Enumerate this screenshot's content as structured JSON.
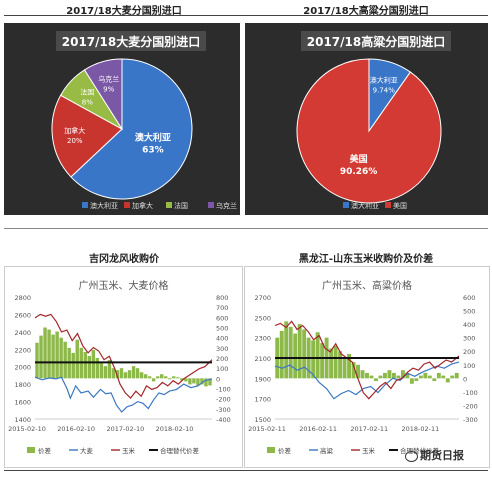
{
  "titles": {
    "top_left": "2017/18大麦分国别进口",
    "top_right": "2017/18大高粱分国别进口",
    "bottom_left": "吉冈龙风收购价",
    "bottom_right": "黑龙江-山东玉米收购价及价差"
  },
  "watermark": "期货日报",
  "chart_data": [
    {
      "type": "pie",
      "title": "2017/18大麦分国别进口",
      "slices": [
        {
          "label": "澳大利亚",
          "pct_label": "63%",
          "value": 63,
          "color": "#3a76c8"
        },
        {
          "label": "加拿大",
          "pct_label": "20%",
          "value": 20,
          "color": "#c8352f"
        },
        {
          "label": "法国",
          "pct_label": "8%",
          "value": 8,
          "color": "#97bb44"
        },
        {
          "label": "乌克兰",
          "pct_label": "9%",
          "value": 9,
          "color": "#7b58a6"
        }
      ],
      "legend": [
        "澳大利亚",
        "加拿大",
        "法国",
        "乌克兰"
      ]
    },
    {
      "type": "pie",
      "title": "2017/18高粱分国别进口",
      "slices": [
        {
          "label": "澳大利亚",
          "pct_label": "9.74%",
          "value": 9.74,
          "color": "#3a76c8"
        },
        {
          "label": "美国",
          "pct_label": "90.26%",
          "value": 90.26,
          "color": "#d43a34"
        }
      ],
      "legend": [
        "澳大利亚",
        "美国"
      ]
    },
    {
      "type": "line",
      "title": "广州玉米、大麦价格",
      "x_ticks": [
        "2015-02-10",
        "2016-02-10",
        "2017-02-10",
        "2018-02-10"
      ],
      "y_left": {
        "min": 1400,
        "max": 2800,
        "ticks": [
          1400,
          1600,
          1800,
          2000,
          2200,
          2400,
          2600,
          2800
        ]
      },
      "y_right": {
        "min": -400,
        "max": 800,
        "ticks": [
          -400,
          -300,
          -200,
          -100,
          0,
          100,
          200,
          300,
          400,
          500,
          600,
          700,
          800
        ]
      },
      "reference": 2050,
      "legend": [
        "价差",
        "大麦",
        "玉米",
        "合理替代价差"
      ],
      "series": [
        {
          "name": "价差",
          "kind": "bar",
          "axis": "right",
          "color": "#8db84a",
          "values": [
            350,
            420,
            500,
            480,
            430,
            460,
            400,
            360,
            300,
            250,
            380,
            300,
            260,
            220,
            280,
            200,
            150,
            120,
            180,
            100,
            80,
            100,
            60,
            80,
            120,
            100,
            60,
            40,
            20,
            -30,
            20,
            40,
            20,
            -10,
            20,
            10,
            -20,
            -30,
            -60,
            -50,
            -70,
            -60,
            -80,
            -70
          ]
        },
        {
          "name": "大麦",
          "kind": "line",
          "axis": "left",
          "color": "#3b78c3",
          "x": [
            0,
            0.04,
            0.08,
            0.12,
            0.15,
            0.18,
            0.2,
            0.23,
            0.26,
            0.3,
            0.33,
            0.37,
            0.4,
            0.43,
            0.46,
            0.49,
            0.52,
            0.55,
            0.58,
            0.61,
            0.64,
            0.67,
            0.7,
            0.73,
            0.76,
            0.8,
            0.84,
            0.88,
            0.92,
            0.96,
            1.0
          ],
          "values": [
            1880,
            1850,
            1870,
            1860,
            1880,
            1750,
            1640,
            1780,
            1700,
            1720,
            1650,
            1740,
            1690,
            1700,
            1560,
            1480,
            1540,
            1560,
            1600,
            1580,
            1520,
            1620,
            1700,
            1680,
            1720,
            1740,
            1800,
            1760,
            1780,
            1840,
            1860
          ]
        },
        {
          "name": "玉米",
          "kind": "line",
          "axis": "left",
          "color": "#a3262a",
          "x": [
            0,
            0.03,
            0.06,
            0.09,
            0.12,
            0.15,
            0.18,
            0.21,
            0.24,
            0.27,
            0.3,
            0.33,
            0.36,
            0.39,
            0.42,
            0.45,
            0.48,
            0.51,
            0.54,
            0.57,
            0.6,
            0.63,
            0.66,
            0.69,
            0.72,
            0.75,
            0.78,
            0.81,
            0.84,
            0.87,
            0.9,
            0.93,
            0.96,
            1.0
          ],
          "values": [
            2560,
            2600,
            2580,
            2600,
            2520,
            2400,
            2420,
            2300,
            2380,
            2240,
            2160,
            2220,
            2180,
            2080,
            2120,
            1980,
            1800,
            1700,
            1640,
            1720,
            1660,
            1780,
            1740,
            1760,
            1820,
            1780,
            1840,
            1800,
            1860,
            1900,
            1940,
            1980,
            2000,
            2080
          ]
        }
      ]
    },
    {
      "type": "line",
      "title": "广州玉米、高粱价格",
      "x_ticks": [
        "2015-02-11",
        "2016-02-11",
        "2017-02-11",
        "2018-02-11"
      ],
      "y_left": {
        "min": 1500,
        "max": 2700,
        "ticks": [
          1500,
          1700,
          1900,
          2100,
          2300,
          2500,
          2700
        ]
      },
      "y_right": {
        "min": -300,
        "max": 600,
        "ticks": [
          -300,
          -200,
          -100,
          0,
          100,
          200,
          300,
          400,
          500,
          600
        ]
      },
      "reference": 2100,
      "legend": [
        "价差",
        "高粱",
        "玉米",
        "合理替代价差"
      ],
      "series": [
        {
          "name": "价差",
          "kind": "bar",
          "axis": "right",
          "color": "#8db84a",
          "values": [
            300,
            350,
            420,
            380,
            330,
            400,
            360,
            300,
            280,
            340,
            260,
            300,
            220,
            240,
            200,
            150,
            180,
            120,
            100,
            60,
            40,
            20,
            -20,
            20,
            40,
            60,
            40,
            20,
            60,
            40,
            -40,
            -20,
            20,
            40,
            20,
            -20,
            40,
            20,
            -30,
            20,
            40
          ]
        },
        {
          "name": "高粱",
          "kind": "line",
          "axis": "left",
          "color": "#3b78c3",
          "x": [
            0,
            0.04,
            0.08,
            0.12,
            0.16,
            0.2,
            0.24,
            0.28,
            0.32,
            0.36,
            0.4,
            0.44,
            0.48,
            0.52,
            0.56,
            0.6,
            0.64,
            0.68,
            0.72,
            0.76,
            0.8,
            0.84,
            0.88,
            0.92,
            0.96,
            1.0
          ],
          "values": [
            2020,
            2000,
            2030,
            1980,
            2010,
            1950,
            1860,
            1800,
            1700,
            1750,
            1780,
            1740,
            1800,
            1820,
            1760,
            1840,
            1900,
            1880,
            1950,
            1920,
            1960,
            1990,
            2020,
            2000,
            2040,
            2060
          ]
        },
        {
          "name": "玉米",
          "kind": "line",
          "axis": "left",
          "color": "#a3262a",
          "x": [
            0,
            0.03,
            0.06,
            0.09,
            0.12,
            0.15,
            0.18,
            0.21,
            0.24,
            0.27,
            0.3,
            0.33,
            0.36,
            0.39,
            0.42,
            0.45,
            0.48,
            0.51,
            0.54,
            0.57,
            0.6,
            0.63,
            0.66,
            0.69,
            0.72,
            0.75,
            0.78,
            0.81,
            0.84,
            0.87,
            0.9,
            0.93,
            0.96,
            1.0
          ],
          "values": [
            2420,
            2440,
            2400,
            2460,
            2380,
            2420,
            2360,
            2280,
            2320,
            2200,
            2160,
            2240,
            2140,
            2100,
            2060,
            1900,
            1760,
            1700,
            1760,
            1820,
            1860,
            1800,
            1880,
            1900,
            1960,
            2000,
            1980,
            2040,
            2060,
            2000,
            2040,
            2080,
            2060,
            2120
          ]
        }
      ]
    }
  ]
}
